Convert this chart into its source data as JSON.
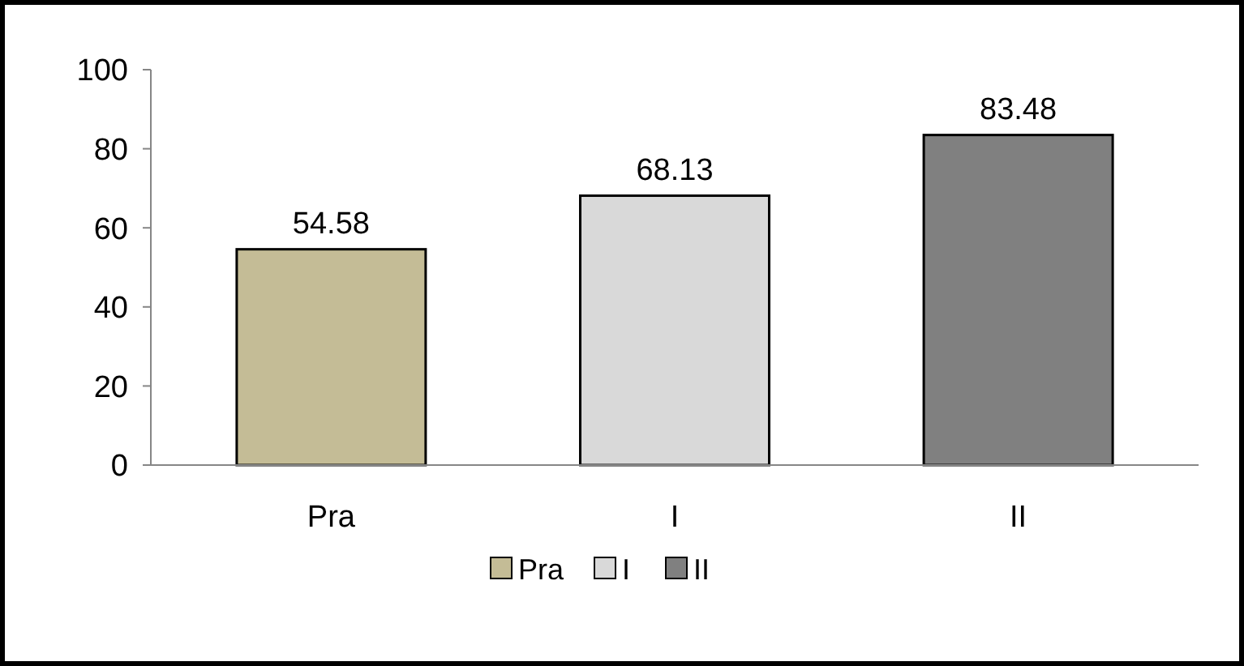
{
  "chart_data": {
    "type": "bar",
    "categories": [
      "Pra",
      "I",
      "II"
    ],
    "stacked": true,
    "series": [
      {
        "name": "Pra",
        "color": "#c4bc96",
        "values": [
          54.58,
          null,
          null
        ]
      },
      {
        "name": "I",
        "color": "#d9d9d9",
        "values": [
          null,
          68.13,
          null
        ]
      },
      {
        "name": "II",
        "color": "#808080",
        "values": [
          null,
          null,
          83.48
        ]
      }
    ],
    "ylim": [
      0,
      100
    ],
    "yticks": [
      0,
      20,
      40,
      60,
      80,
      100
    ],
    "data_labels": true,
    "grid": false,
    "legend": "bottom"
  }
}
